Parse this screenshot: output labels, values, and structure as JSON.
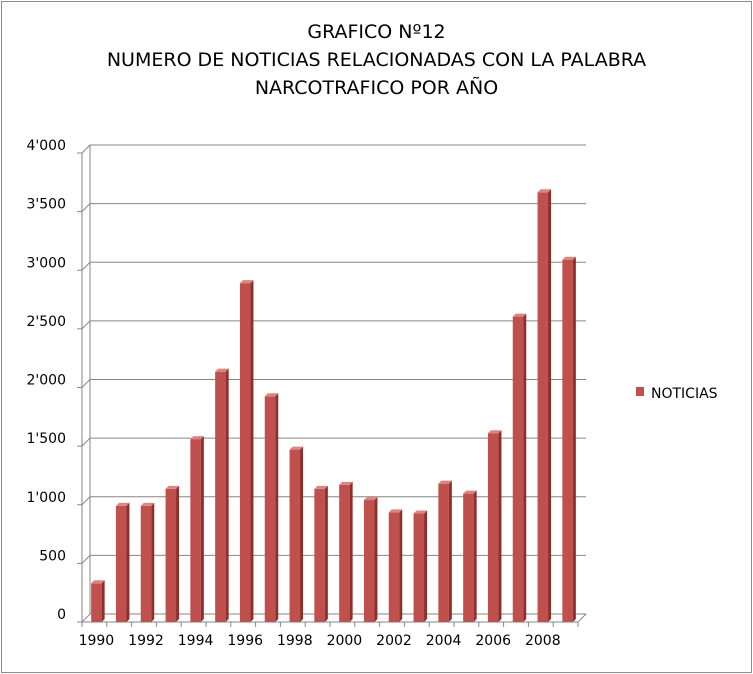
{
  "chart_data": {
    "type": "bar",
    "title_lines": [
      "GRAFICO Nº12",
      "NUMERO DE NOTICIAS RELACIONADAS CON LA PALABRA",
      "NARCOTRAFICO POR AÑO"
    ],
    "categories": [
      "1990",
      "1991",
      "1992",
      "1993",
      "1994",
      "1995",
      "1996",
      "1997",
      "1998",
      "1999",
      "2000",
      "2001",
      "2002",
      "2003",
      "2004",
      "2005",
      "2006",
      "2007",
      "2008",
      "2009"
    ],
    "x_tick_labels": [
      "1990",
      "",
      "1992",
      "",
      "1994",
      "",
      "1996",
      "",
      "1998",
      "",
      "2000",
      "",
      "2002",
      "",
      "2004",
      "",
      "2006",
      "",
      "2008",
      ""
    ],
    "series": [
      {
        "name": "NOTICIAS",
        "color": "#c0504d",
        "values": [
          330,
          990,
          990,
          1135,
          1560,
          2135,
          2890,
          1925,
          1470,
          1135,
          1170,
          1040,
          935,
          925,
          1180,
          1095,
          1610,
          2605,
          3665,
          3090
        ]
      }
    ],
    "ylim": [
      0,
      4000
    ],
    "y_ticks": [
      0,
      500,
      1000,
      1500,
      2000,
      2500,
      3000,
      3500,
      4000
    ],
    "y_tick_labels": [
      "0",
      "500",
      "1'000",
      "1'500",
      "2'000",
      "2'500",
      "3'000",
      "3'500",
      "4'000"
    ],
    "grid": true,
    "legend_position": "right"
  }
}
